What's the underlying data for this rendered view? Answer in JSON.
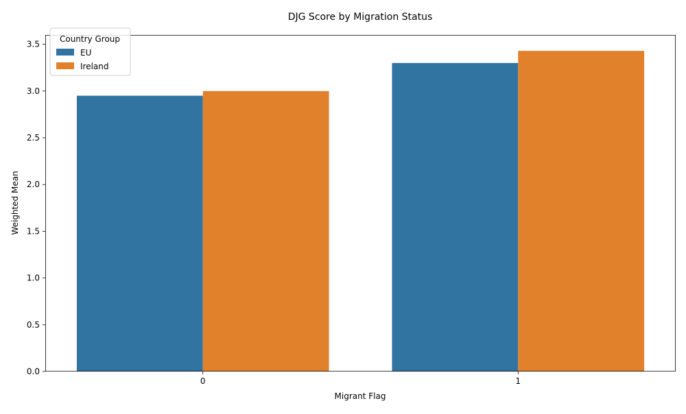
{
  "chart_data": {
    "type": "bar",
    "title": "DJG Score by Migration Status",
    "xlabel": "Migrant Flag",
    "ylabel": "Weighted Mean",
    "categories": [
      "0",
      "1"
    ],
    "series": [
      {
        "name": "EU",
        "values": [
          2.95,
          3.3
        ],
        "color": "#3274a1"
      },
      {
        "name": "Ireland",
        "values": [
          3.0,
          3.43
        ],
        "color": "#e1812c"
      }
    ],
    "ylim": [
      0,
      3.6
    ],
    "yticks": [
      "0.0",
      "0.5",
      "1.0",
      "1.5",
      "2.0",
      "2.5",
      "3.0",
      "3.5"
    ],
    "grid": false,
    "legend": {
      "title": "Country Group",
      "position": "top-left"
    }
  }
}
